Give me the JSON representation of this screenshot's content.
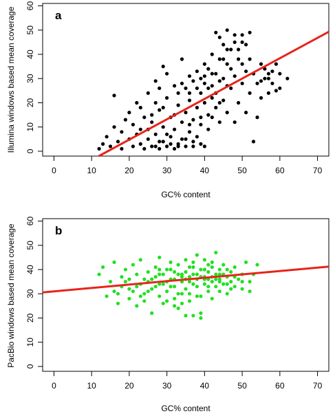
{
  "chart_data": [
    {
      "type": "scatter",
      "panel_label": "a",
      "xlabel": "GC% content",
      "ylabel": "Illumina windows based mean coverage",
      "xlim": [
        -3,
        73
      ],
      "ylim": [
        -2,
        61
      ],
      "xticks": [
        0,
        10,
        20,
        30,
        40,
        50,
        60,
        70
      ],
      "yticks": [
        0,
        10,
        20,
        30,
        40,
        50,
        60
      ],
      "marker_color": "#000000",
      "trend_color": "#e8231b",
      "trendline": {
        "slope": 0.84,
        "intercept": -12.0
      },
      "series": [
        {
          "points": [
            [
              12,
              1
            ],
            [
              13,
              3
            ],
            [
              14,
              6
            ],
            [
              15,
              2
            ],
            [
              16,
              10
            ],
            [
              16,
              23
            ],
            [
              17,
              4
            ],
            [
              18,
              1
            ],
            [
              18,
              8
            ],
            [
              19,
              13
            ],
            [
              20,
              5
            ],
            [
              20,
              16
            ],
            [
              21,
              2
            ],
            [
              21,
              11
            ],
            [
              22,
              7
            ],
            [
              22,
              20
            ],
            [
              23,
              3
            ],
            [
              23,
              9
            ],
            [
              24,
              1
            ],
            [
              24,
              14
            ],
            [
              25,
              24
            ],
            [
              25,
              5
            ],
            [
              26,
              2
            ],
            [
              26,
              12
            ],
            [
              27,
              29
            ],
            [
              27,
              7
            ],
            [
              28,
              1
            ],
            [
              28,
              17
            ],
            [
              28,
              4
            ],
            [
              29,
              35
            ],
            [
              29,
              10
            ],
            [
              30,
              2
            ],
            [
              30,
              22
            ],
            [
              31,
              6
            ],
            [
              31,
              14
            ],
            [
              32,
              1
            ],
            [
              32,
              27
            ],
            [
              32,
              9
            ],
            [
              33,
              3
            ],
            [
              33,
              19
            ],
            [
              34,
              38
            ],
            [
              34,
              5
            ],
            [
              34,
              12
            ],
            [
              35,
              26
            ],
            [
              35,
              2
            ],
            [
              35,
              16
            ],
            [
              36,
              31
            ],
            [
              36,
              8
            ],
            [
              36,
              21
            ],
            [
              37,
              4
            ],
            [
              37,
              29
            ],
            [
              37,
              13
            ],
            [
              38,
              33
            ],
            [
              38,
              18
            ],
            [
              38,
              6
            ],
            [
              39,
              24
            ],
            [
              39,
              11
            ],
            [
              39,
              30
            ],
            [
              40,
              2
            ],
            [
              40,
              20
            ],
            [
              40,
              28
            ],
            [
              41,
              15
            ],
            [
              41,
              34
            ],
            [
              41,
              9
            ],
            [
              42,
              22
            ],
            [
              42,
              40
            ],
            [
              42,
              27
            ],
            [
              43,
              18
            ],
            [
              43,
              32
            ],
            [
              43,
              49
            ],
            [
              44,
              12
            ],
            [
              44,
              29
            ],
            [
              44,
              47
            ],
            [
              45,
              21
            ],
            [
              45,
              38
            ],
            [
              45,
              44
            ],
            [
              46,
              27
            ],
            [
              46,
              50
            ],
            [
              46,
              16
            ],
            [
              47,
              34
            ],
            [
              47,
              42
            ],
            [
              48,
              31
            ],
            [
              48,
              48
            ],
            [
              48,
              12
            ],
            [
              49,
              20
            ],
            [
              49,
              38
            ],
            [
              50,
              28
            ],
            [
              50,
              45
            ],
            [
              51,
              16
            ],
            [
              51,
              33
            ],
            [
              52,
              24
            ],
            [
              52,
              49
            ],
            [
              53,
              32
            ],
            [
              54,
              28
            ],
            [
              55,
              36
            ],
            [
              55,
              22
            ],
            [
              56,
              34
            ],
            [
              57,
              30
            ],
            [
              57,
              24
            ],
            [
              58,
              28
            ],
            [
              59,
              36
            ],
            [
              60,
              26
            ],
            [
              62,
              30
            ],
            [
              27,
              2
            ],
            [
              29,
              4
            ],
            [
              31,
              3
            ],
            [
              33,
              2
            ],
            [
              35,
              5
            ],
            [
              37,
              2
            ],
            [
              39,
              3
            ],
            [
              38,
              26
            ],
            [
              36,
              24
            ],
            [
              40,
              31
            ],
            [
              34,
              28
            ],
            [
              39,
              14
            ],
            [
              41,
              26
            ],
            [
              30,
              7
            ],
            [
              32,
              15
            ],
            [
              36,
              11
            ],
            [
              43,
              24
            ],
            [
              45,
              30
            ],
            [
              47,
              26
            ],
            [
              49,
              42
            ],
            [
              51,
              44
            ],
            [
              53,
              4
            ],
            [
              54,
              14
            ],
            [
              56,
              30
            ],
            [
              58,
              33
            ],
            [
              26,
              15
            ],
            [
              28,
              26
            ],
            [
              29,
              18
            ],
            [
              30,
              32
            ],
            [
              33,
              24
            ],
            [
              42,
              14
            ],
            [
              44,
              20
            ],
            [
              46,
              36
            ],
            [
              50,
              36
            ],
            [
              52,
              38
            ],
            [
              55,
              29
            ],
            [
              57,
              32
            ],
            [
              59,
              25
            ],
            [
              60,
              32
            ],
            [
              23,
              18
            ],
            [
              25,
              9
            ],
            [
              27,
              20
            ],
            [
              40,
              36
            ],
            [
              42,
              32
            ],
            [
              44,
              38
            ],
            [
              46,
              42
            ],
            [
              48,
              45
            ],
            [
              50,
              48
            ]
          ]
        }
      ]
    },
    {
      "type": "scatter",
      "panel_label": "b",
      "xlabel": "GC% content",
      "ylabel": "PacBio windows based mean coverage",
      "xlim": [
        -3,
        73
      ],
      "ylim": [
        -2,
        61
      ],
      "xticks": [
        0,
        10,
        20,
        30,
        40,
        50,
        60,
        70
      ],
      "yticks": [
        0,
        10,
        20,
        30,
        40,
        50,
        60
      ],
      "marker_color": "#22e022",
      "trend_color": "#e8231b",
      "trendline": {
        "slope": 0.14,
        "intercept": 31.0
      },
      "series": [
        {
          "points": [
            [
              12,
              38
            ],
            [
              13,
              41
            ],
            [
              14,
              29
            ],
            [
              15,
              35
            ],
            [
              16,
              31
            ],
            [
              16,
              43
            ],
            [
              17,
              26
            ],
            [
              18,
              37
            ],
            [
              18,
              33
            ],
            [
              19,
              40
            ],
            [
              20,
              28
            ],
            [
              20,
              36
            ],
            [
              21,
              42
            ],
            [
              21,
              31
            ],
            [
              22,
              25
            ],
            [
              22,
              38
            ],
            [
              23,
              34
            ],
            [
              23,
              44
            ],
            [
              24,
              30
            ],
            [
              24,
              27
            ],
            [
              25,
              39
            ],
            [
              25,
              35
            ],
            [
              26,
              22
            ],
            [
              26,
              32
            ],
            [
              27,
              41
            ],
            [
              27,
              37
            ],
            [
              28,
              29
            ],
            [
              28,
              45
            ],
            [
              28,
              34
            ],
            [
              29,
              38
            ],
            [
              29,
              26
            ],
            [
              30,
              40
            ],
            [
              30,
              31
            ],
            [
              31,
              36
            ],
            [
              31,
              43
            ],
            [
              32,
              28
            ],
            [
              32,
              39
            ],
            [
              32,
              33
            ],
            [
              33,
              42
            ],
            [
              33,
              24
            ],
            [
              34,
              35
            ],
            [
              34,
              37
            ],
            [
              34,
              30
            ],
            [
              35,
              44
            ],
            [
              35,
              32
            ],
            [
              35,
              39
            ],
            [
              36,
              27
            ],
            [
              36,
              41
            ],
            [
              36,
              35
            ],
            [
              37,
              38
            ],
            [
              37,
              21
            ],
            [
              37,
              43
            ],
            [
              38,
              33
            ],
            [
              38,
              46
            ],
            [
              38,
              36
            ],
            [
              39,
              29
            ],
            [
              39,
              40
            ],
            [
              39,
              22
            ],
            [
              40,
              37
            ],
            [
              40,
              34
            ],
            [
              40,
              44
            ],
            [
              41,
              31
            ],
            [
              41,
              39
            ],
            [
              41,
              36
            ],
            [
              42,
              41
            ],
            [
              42,
              28
            ],
            [
              42,
              35
            ],
            [
              43,
              38
            ],
            [
              43,
              33
            ],
            [
              43,
              47
            ],
            [
              44,
              36
            ],
            [
              44,
              40
            ],
            [
              44,
              31
            ],
            [
              45,
              34
            ],
            [
              45,
              42
            ],
            [
              46,
              37
            ],
            [
              46,
              30
            ],
            [
              47,
              39
            ],
            [
              47,
              35
            ],
            [
              48,
              33
            ],
            [
              48,
              41
            ],
            [
              49,
              36
            ],
            [
              50,
              38
            ],
            [
              50,
              32
            ],
            [
              51,
              43
            ],
            [
              52,
              35
            ],
            [
              52,
              31
            ],
            [
              53,
              38
            ],
            [
              54,
              42
            ],
            [
              30,
              35
            ],
            [
              32,
              36
            ],
            [
              34,
              38
            ],
            [
              36,
              37
            ],
            [
              38,
              38
            ],
            [
              40,
              36
            ],
            [
              42,
              37
            ],
            [
              44,
              35
            ],
            [
              31,
              33
            ],
            [
              33,
              30
            ],
            [
              35,
              36
            ],
            [
              37,
              34
            ],
            [
              39,
              37
            ],
            [
              41,
              33
            ],
            [
              43,
              36
            ],
            [
              29,
              34
            ],
            [
              27,
              33
            ],
            [
              25,
              31
            ],
            [
              23,
              29
            ],
            [
              26,
              36
            ],
            [
              28,
              38
            ],
            [
              30,
              27
            ],
            [
              32,
              25
            ],
            [
              34,
              26
            ],
            [
              36,
              30
            ],
            [
              38,
              29
            ],
            [
              40,
              40
            ],
            [
              42,
              43
            ],
            [
              44,
              38
            ],
            [
              46,
              34
            ],
            [
              48,
              37
            ],
            [
              50,
              35
            ],
            [
              24,
              36
            ],
            [
              22,
              33
            ],
            [
              20,
              32
            ],
            [
              19,
              35
            ],
            [
              17,
              30
            ],
            [
              46,
              40
            ],
            [
              47,
              32
            ],
            [
              39,
              20
            ],
            [
              35,
              21
            ],
            [
              28,
              40
            ],
            [
              31,
              40
            ],
            [
              33,
              38
            ],
            [
              37,
              41
            ],
            [
              41,
              42
            ],
            [
              45,
              38
            ]
          ]
        }
      ]
    }
  ]
}
